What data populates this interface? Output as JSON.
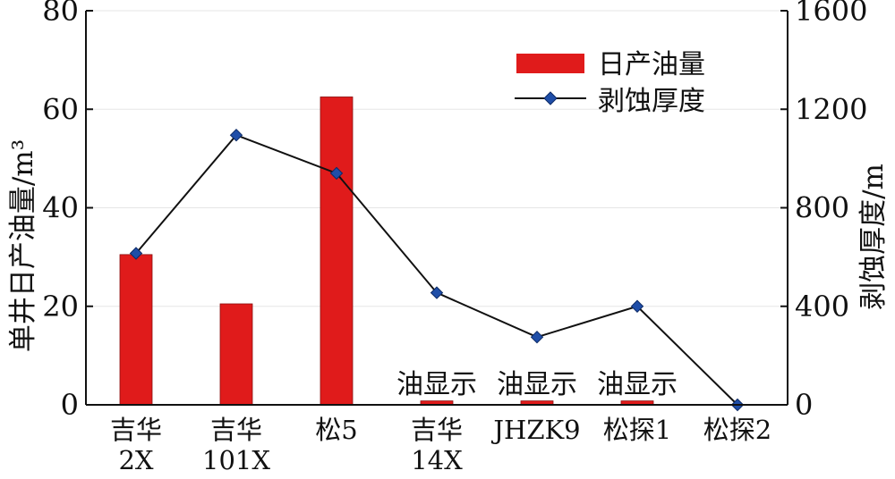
{
  "chart_data": {
    "type": "bar+line",
    "categories": [
      [
        "吉华",
        "2X"
      ],
      [
        "吉华",
        "101X"
      ],
      [
        "松5"
      ],
      [
        "吉华",
        "14X"
      ],
      [
        "JHZK9"
      ],
      [
        "松探1"
      ],
      [
        "松探2"
      ]
    ],
    "series": [
      {
        "name": "日产油量",
        "type": "bar",
        "axis": "left",
        "color": "#e01b1b",
        "values": [
          30.5,
          20.5,
          62.5,
          0.8,
          0.8,
          0.8,
          0
        ]
      },
      {
        "name": "剥蚀厚度",
        "type": "line",
        "axis": "right",
        "color": "#111111",
        "marker": "diamond",
        "marker_color": "#1f4ea8",
        "values": [
          615,
          1095,
          940,
          455,
          275,
          400,
          0
        ]
      }
    ],
    "y_left": {
      "label": "单井日产油量/m³",
      "ylim": [
        0,
        80
      ],
      "ticks": [
        "0",
        "20",
        "40",
        "60",
        "80"
      ]
    },
    "y_right": {
      "label": "剥蚀厚度/m",
      "ylim": [
        0,
        1600
      ],
      "ticks": [
        "0",
        "400",
        "800",
        "1200",
        "1600"
      ]
    },
    "annotations": [
      "油显示",
      "油显示",
      "油显示"
    ],
    "grid": "horizontal",
    "legend_position": "top-right"
  }
}
